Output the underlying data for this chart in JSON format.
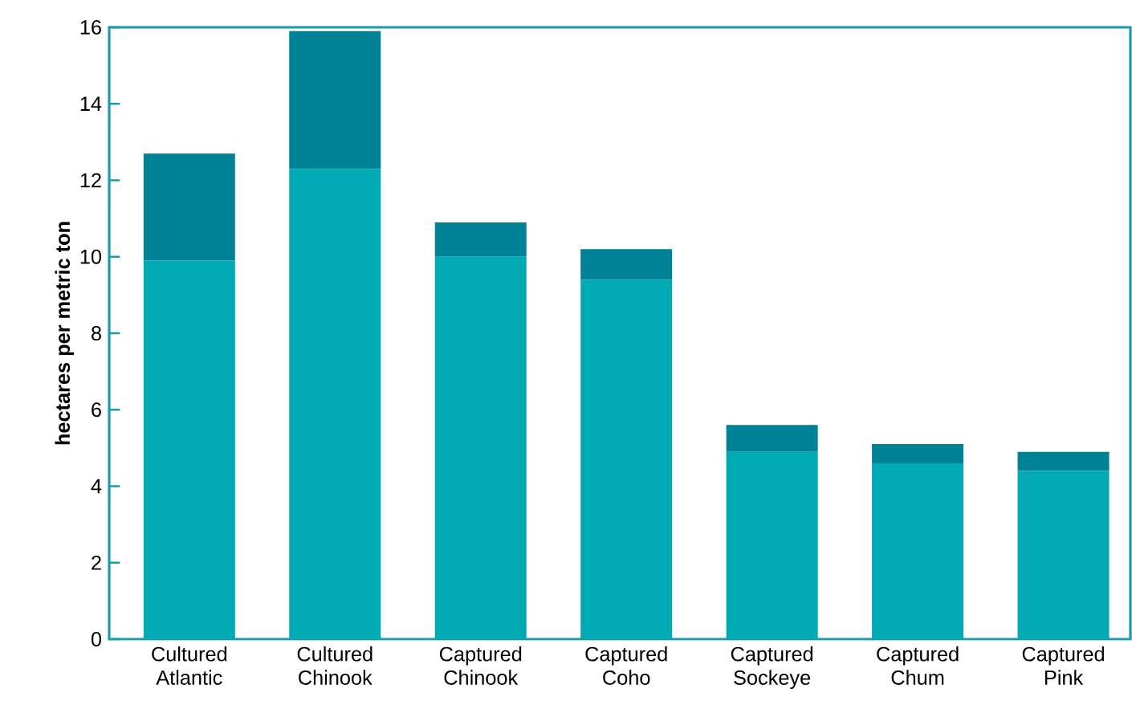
{
  "chart_data": {
    "type": "bar",
    "stacked": true,
    "ylabel": "hectares per metric ton",
    "categories": [
      "Cultured Atlantic",
      "Cultured Chinook",
      "Captured Chinook",
      "Captured Coho",
      "Captured Sockeye",
      "Captured Chum",
      "Captured Pink"
    ],
    "series": [
      {
        "color": "#00aab5",
        "values": [
          9.9,
          12.3,
          10.0,
          9.4,
          4.9,
          4.6,
          4.4
        ]
      },
      {
        "color": "#008296",
        "values": [
          2.8,
          3.6,
          0.9,
          0.8,
          0.7,
          0.5,
          0.5
        ]
      }
    ],
    "ylim": [
      0,
      16
    ],
    "yticks": [
      0,
      2,
      4,
      6,
      8,
      10,
      12,
      14,
      16
    ]
  }
}
